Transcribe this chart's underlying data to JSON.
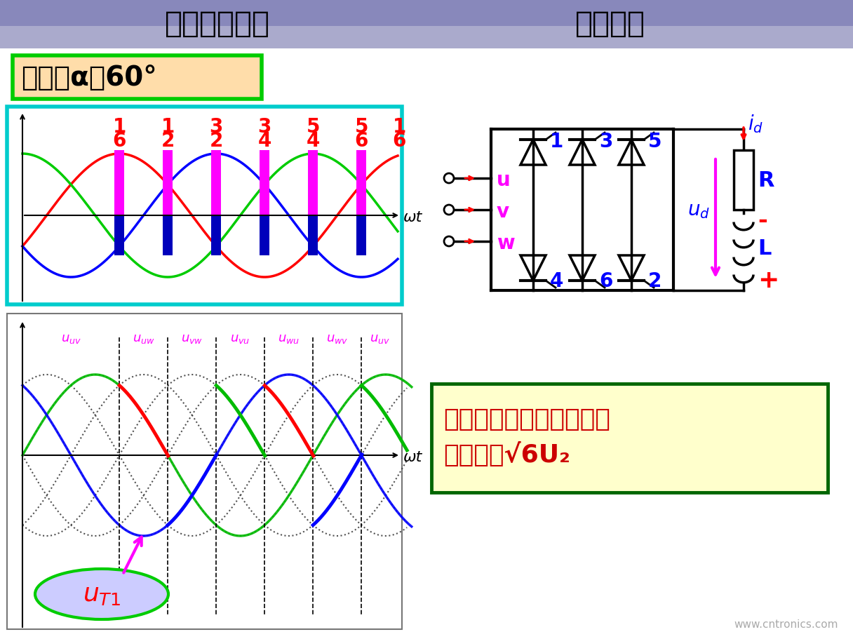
{
  "title_left": "三相全控桥式",
  "title_right": "工作原理",
  "control_angle_text": "控制角α＝60°",
  "waveform_labels_top": [
    "1",
    "1",
    "3",
    "3",
    "5",
    "5",
    "1"
  ],
  "waveform_labels_bottom": [
    "6",
    "2",
    "2",
    "4",
    "4",
    "6",
    "6"
  ],
  "omegat_label": "ωt",
  "bottom_omegat_label": "ωt",
  "formula_line1": "晶闸管承受的最大正、反",
  "formula_line2": "向压降为√6U₂",
  "website": "www.cntronics.com",
  "colors": {
    "header_top": "#7777aa",
    "header_bottom": "#aaaacc",
    "white_bg": "#ffffff",
    "green_border": "#00cc00",
    "cyan_border": "#00cccc",
    "ctrl_bg": "#ffddaa",
    "red_wave": "#ff0000",
    "blue_wave": "#0000ff",
    "green_wave": "#00bb00",
    "magenta_bar": "#ff00ff",
    "dark_blue_bar": "#0000bb",
    "label_red": "#ff0000",
    "label_blue": "#0000ff",
    "label_magenta": "#ff00ff",
    "dotted_dark": "#333333",
    "ut1_fill": "#ccccff",
    "ut1_border": "#00cc00",
    "ut1_text": "#ff0000",
    "formula_bg": "#ffffcc",
    "formula_border": "#008800",
    "formula_text": "#cc0000",
    "watermark": "#aaaaaa"
  }
}
